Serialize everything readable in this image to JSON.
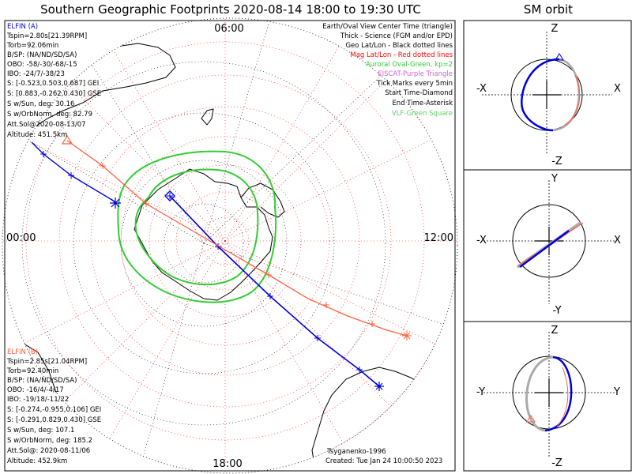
{
  "title": "Southern Geographic Footprints 2020-08-14 18:00 to 19:30 UTC",
  "sm_title": "SM orbit",
  "mlt_labels": {
    "top": "06:00",
    "left": "00:00",
    "right": "12:00",
    "bottom": "18:00"
  },
  "legend": [
    {
      "text": "Earth/Oval View Center Time (triangle)",
      "color": "#000000"
    },
    {
      "text": "Thick - Science (FGM and/or EPD)",
      "color": "#000000"
    },
    {
      "text": "Geo Lat/Lon - Black dotted lines",
      "color": "#000000"
    },
    {
      "text": "Mag Lat/Lon - Red dotted lines",
      "color": "#ff0000"
    },
    {
      "text": "Auroral Oval-Green, kp=2",
      "color": "#33cc33"
    },
    {
      "text": "EISCAT-Purple Triangle",
      "color": "#cc66cc"
    },
    {
      "text": "Tick Marks every 5min",
      "color": "#000000"
    },
    {
      "text": "Start Time-Diamond",
      "color": "#000000"
    },
    {
      "text": "End Time-Asterisk",
      "color": "#000000"
    },
    {
      "text": "VLF-Green Square",
      "color": "#66cc66"
    }
  ],
  "elfin_a": {
    "name": "ELFIN (A)",
    "color": "#0000dd",
    "lines": [
      "Tspin=2.80s[21.39RPM]",
      "Torb=92.06min",
      "B/SP: (NA/ND/SD/SA)",
      "OBO: -58/-30/-68/-15",
      "IBO: -24/7/-38/23",
      "S: [-0.523,0.503,0.687] GEI",
      "S: [0.883,-0.262,0.430] GSE",
      "S w/Sun, deg: 30.16",
      "S w/OrbNorm, deg: 82.79",
      "Att.Sol@2020-08-13/07",
      "Altitude: 451.5km"
    ]
  },
  "elfin_b": {
    "name": "ELFIN (B)",
    "color": "#ff6040",
    "lines": [
      "Tspin=2.85s[21.04RPM]",
      "Torb=92.40min",
      "B/SP: (NA/ND/SD/SA)",
      "OBO: -16/4/-4/17",
      "IBO: -19/18/-11/22",
      "S: [-0.274,-0.955,0.106] GEI",
      "S: [-0.291,0.829,0.430] GSE",
      "S w/Sun, deg: 107.1",
      "S w/OrbNorm, deg: 185.2",
      "Att.Sol@: 2020-08-11/06",
      "Altitude: 452.9km"
    ]
  },
  "credit": "Tsyganenko-1996",
  "created": "Created: Tue Jan 24 10:00:50 2023",
  "panels": [
    {
      "top": "Z",
      "bottom": "-Z",
      "left": "-X",
      "right": "X"
    },
    {
      "top": "Y",
      "bottom": "-Y",
      "left": "-X",
      "right": "X"
    },
    {
      "top": "Z",
      "bottom": "-Z",
      "left": "-Y",
      "right": "Y"
    }
  ],
  "colors": {
    "elfin_a": "#0000dd",
    "elfin_b": "#ff6040",
    "oval": "#33cc33",
    "mag_grid": "#ff0000",
    "geo_grid": "#000000"
  }
}
